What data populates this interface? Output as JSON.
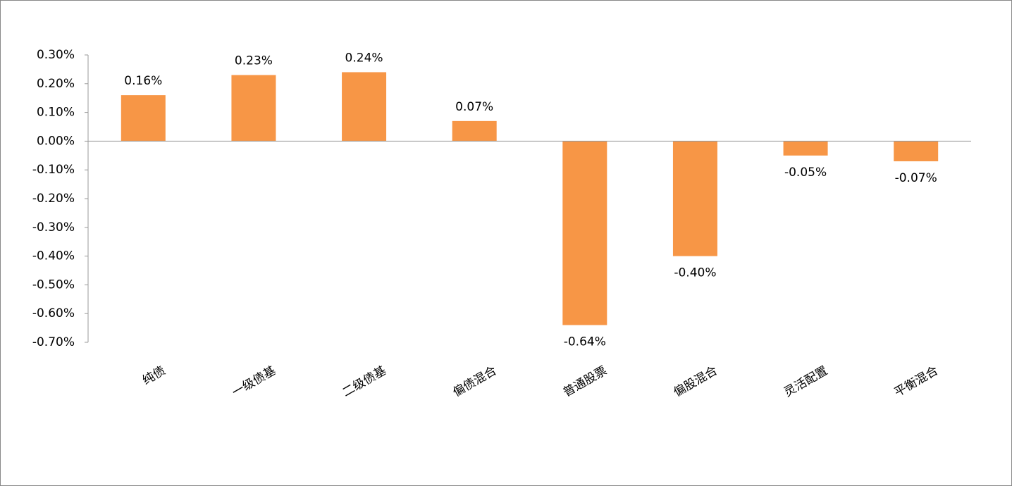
{
  "chart_data": {
    "type": "bar",
    "categories": [
      "纯债",
      "一级债基",
      "二级债基",
      "偏债混合",
      "普通股票",
      "偏股混合",
      "灵活配置",
      "平衡混合"
    ],
    "values": [
      0.16,
      0.23,
      0.24,
      0.07,
      -0.64,
      -0.4,
      -0.05,
      -0.07
    ],
    "value_labels": [
      "0.16%",
      "0.23%",
      "0.24%",
      "0.07%",
      "-0.64%",
      "-0.40%",
      "-0.05%",
      "-0.07%"
    ],
    "color": "#f79646",
    "ylim": [
      -0.7,
      0.3
    ],
    "yticks": [
      {
        "value": 0.3,
        "label": "0.30%"
      },
      {
        "value": 0.2,
        "label": "0.20%"
      },
      {
        "value": 0.1,
        "label": "0.10%"
      },
      {
        "value": 0,
        "label": "0.00%"
      },
      {
        "value": -0.1,
        "label": "-0.10%"
      },
      {
        "value": -0.2,
        "label": "-0.20%"
      },
      {
        "value": -0.3,
        "label": "-0.30%"
      },
      {
        "value": -0.4,
        "label": "-0.40%"
      },
      {
        "value": -0.5,
        "label": "-0.50%"
      },
      {
        "value": -0.6,
        "label": "-0.60%"
      },
      {
        "value": -0.7,
        "label": "-0.70%"
      }
    ],
    "grid": false
  }
}
